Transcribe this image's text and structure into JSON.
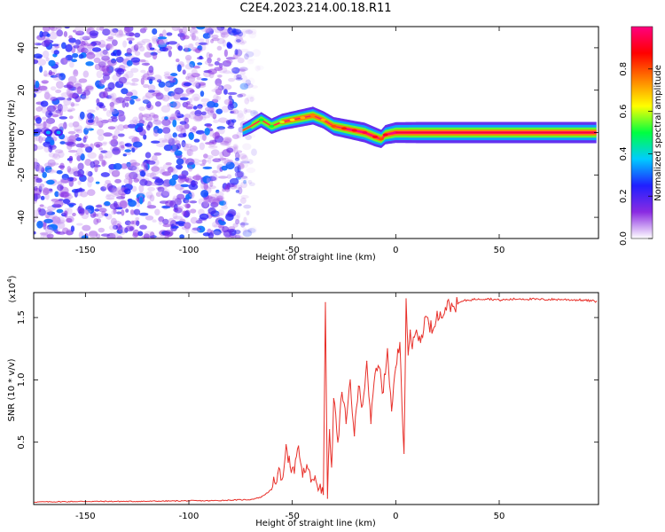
{
  "page_title": "C2E4.2023.214.00.18.R11",
  "chart_data": [
    {
      "type": "heatmap",
      "title": "C2E4.2023.214.00.18.R11",
      "xlabel": "Height of straight line (km)",
      "ylabel": "Frequency (Hz)",
      "xlim": [
        -175,
        98
      ],
      "ylim": [
        -50,
        50
      ],
      "xticks": [
        -150,
        -100,
        -50,
        0,
        50
      ],
      "xtick_labels": [
        "-150",
        "-100",
        "-50",
        "0",
        "50"
      ],
      "yticks": [
        -40,
        -20,
        0,
        20,
        40
      ],
      "ytick_labels": [
        "-40",
        "-20",
        "0",
        "20",
        "40"
      ],
      "noise_region_x": [
        -175,
        -70
      ],
      "ridge": {
        "x": [
          -74,
          -70,
          -65,
          -60,
          -55,
          -50,
          -45,
          -40,
          -35,
          -30,
          -25,
          -20,
          -15,
          -10,
          -7,
          -5,
          0,
          10,
          20,
          40,
          60,
          80,
          97
        ],
        "y": [
          1,
          3,
          6,
          3,
          5,
          6,
          7,
          8,
          6,
          3,
          2,
          1,
          0,
          -2,
          -3,
          -1,
          0,
          0,
          0,
          0,
          0,
          0,
          0
        ],
        "amplitude": [
          0.15,
          0.3,
          0.4,
          0.4,
          0.5,
          0.55,
          0.6,
          0.65,
          0.6,
          0.7,
          0.75,
          0.8,
          0.85,
          0.8,
          0.7,
          0.8,
          0.95,
          1,
          1,
          1,
          1,
          1,
          1
        ]
      },
      "colorbar": {
        "label": "Normalized spectral amplitude",
        "range": [
          0,
          1
        ],
        "ticks": [
          0.0,
          0.2,
          0.4,
          0.6,
          0.8
        ],
        "tick_labels": [
          "0.0",
          "0.2",
          "0.4",
          "0.6",
          "0.8"
        ],
        "colors": [
          "#ffffff",
          "#8a2be2",
          "#2020ff",
          "#00ccff",
          "#00ff40",
          "#ffff00",
          "#ff8000",
          "#ff0000",
          "#ff0080"
        ]
      }
    },
    {
      "type": "line",
      "xlabel": "Height of straight line (km)",
      "ylabel": "SNR (10 * v/v)",
      "y_multiplier_label": "(x10",
      "y_multiplier_exp": "4",
      "xlim": [
        -175,
        98
      ],
      "ylim": [
        0,
        17000
      ],
      "xticks": [
        -150,
        -100,
        -50,
        0,
        50
      ],
      "xtick_labels": [
        "-150",
        "-100",
        "-50",
        "0",
        "50"
      ],
      "yticks": [
        5000,
        10000,
        15000
      ],
      "ytick_labels": [
        "0.5",
        "1.0",
        "1.5"
      ],
      "series": [
        {
          "color": "#e8302a",
          "x": [
            -175,
            -150,
            -125,
            -100,
            -90,
            -80,
            -70,
            -65,
            -60,
            -57,
            -55,
            -53,
            -51,
            -49,
            -47,
            -45,
            -43,
            -41,
            -39,
            -37,
            -35,
            -34,
            -33,
            -32,
            -31,
            -30,
            -28,
            -26,
            -24,
            -22,
            -20,
            -18,
            -16,
            -14,
            -12,
            -10,
            -8,
            -6,
            -4,
            -2,
            0,
            2,
            4,
            5,
            6,
            7,
            8,
            10,
            12,
            14,
            16,
            18,
            20,
            22,
            24,
            26,
            28,
            30,
            32,
            35,
            40,
            45,
            50,
            60,
            70,
            80,
            90,
            97
          ],
          "y": [
            200,
            250,
            250,
            300,
            300,
            350,
            400,
            600,
            1200,
            2500,
            2000,
            4800,
            3000,
            2500,
            4700,
            2200,
            3200,
            1800,
            2300,
            1300,
            800,
            16200,
            500,
            6000,
            3000,
            8500,
            5000,
            9000,
            6500,
            10000,
            5500,
            9500,
            8000,
            11500,
            6500,
            10500,
            11000,
            9000,
            12500,
            7500,
            11000,
            13000,
            4100,
            16500,
            12000,
            14000,
            12500,
            14000,
            13000,
            15000,
            14500,
            14000,
            15500,
            15000,
            15800,
            16000,
            15900,
            16100,
            16300,
            16400,
            16500,
            16500,
            16400,
            16500,
            16450,
            16450,
            16400,
            16300
          ]
        }
      ]
    }
  ]
}
